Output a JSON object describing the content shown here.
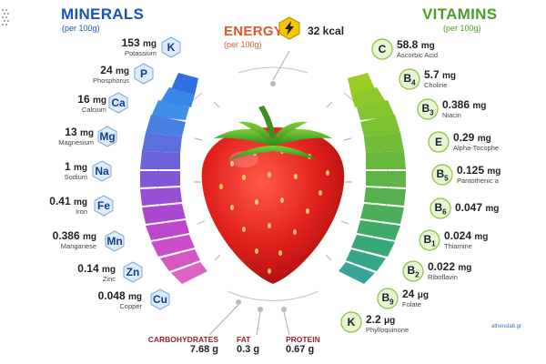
{
  "minerals": {
    "title": "MINERALS",
    "subtitle": "(per 100g)",
    "items": [
      {
        "symbol": "K",
        "amount": "153",
        "unit": "mg",
        "name": "Potassium"
      },
      {
        "symbol": "P",
        "amount": "24",
        "unit": "mg",
        "name": "Phosphorus"
      },
      {
        "symbol": "Ca",
        "amount": "16",
        "unit": "mg",
        "name": "Calcium"
      },
      {
        "symbol": "Mg",
        "amount": "13",
        "unit": "mg",
        "name": "Magnesium"
      },
      {
        "symbol": "Na",
        "amount": "1",
        "unit": "mg",
        "name": "Sodium"
      },
      {
        "symbol": "Fe",
        "amount": "0.41",
        "unit": "mg",
        "name": "Iron"
      },
      {
        "symbol": "Mn",
        "amount": "0.386",
        "unit": "mg",
        "name": "Manganese"
      },
      {
        "symbol": "Zn",
        "amount": "0.14",
        "unit": "mg",
        "name": "Zinc"
      },
      {
        "symbol": "Cu",
        "amount": "0.048",
        "unit": "mg",
        "name": "Copper"
      }
    ]
  },
  "energy": {
    "title": "ENERGY",
    "subtitle": "(per 100g)",
    "value": "32 kcal"
  },
  "vitamins": {
    "title": "VITAMINS",
    "subtitle": "(per 100g)",
    "items": [
      {
        "symbol": "C",
        "sub": "",
        "amount": "58.8",
        "unit": "mg",
        "name": "Ascorbic Acid"
      },
      {
        "symbol": "B",
        "sub": "4",
        "amount": "5.7",
        "unit": "mg",
        "name": "Choline"
      },
      {
        "symbol": "B",
        "sub": "3",
        "amount": "0.386",
        "unit": "mg",
        "name": "Niacin"
      },
      {
        "symbol": "E",
        "sub": "",
        "amount": "0.29",
        "unit": "mg",
        "name": "Alpha-Tocophe"
      },
      {
        "symbol": "B",
        "sub": "5",
        "amount": "0.125",
        "unit": "mg",
        "name": "Pantothenic a"
      },
      {
        "symbol": "B",
        "sub": "6",
        "amount": "0.047",
        "unit": "mg",
        "name": ""
      },
      {
        "symbol": "B",
        "sub": "1",
        "amount": "0.024",
        "unit": "mg",
        "name": "Thiamine"
      },
      {
        "symbol": "B",
        "sub": "2",
        "amount": "0.022",
        "unit": "mg",
        "name": "Riboflavin"
      },
      {
        "symbol": "B",
        "sub": "9",
        "amount": "24",
        "unit": "μg",
        "name": "Folate"
      },
      {
        "symbol": "K",
        "sub": "",
        "amount": "2.2",
        "unit": "μg",
        "name": "Phylloquinone"
      }
    ]
  },
  "macros": [
    {
      "label": "CARBOHYDRATES",
      "value": "7.68 g"
    },
    {
      "label": "FAT",
      "value": "0.3 g"
    },
    {
      "label": "PROTEIN",
      "value": "0.67 g"
    }
  ],
  "credit": "athenslab.gr",
  "colors": {
    "minerals_title": "#1a55b5",
    "vitamins_title": "#4aa024",
    "energy_title": "#e0572a",
    "macro_label": "#a61d2e"
  }
}
